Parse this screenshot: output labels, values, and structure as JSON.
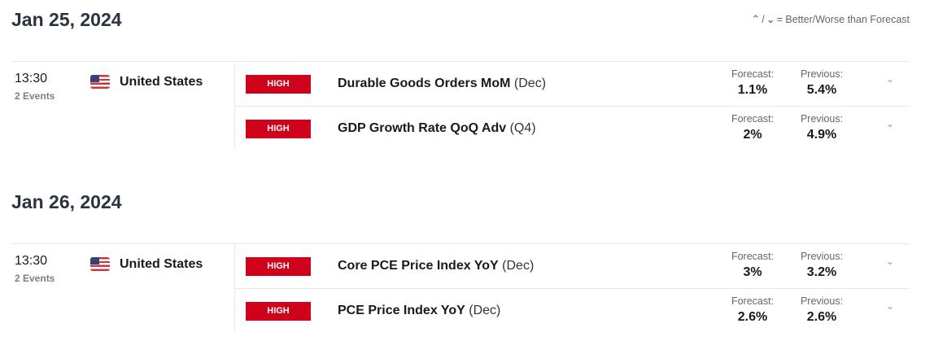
{
  "legend": {
    "better_icon": "better-arrow-icon",
    "worse_icon": "worse-arrow-icon",
    "text": "= Better/Worse than Forecast"
  },
  "labels": {
    "forecast": "Forecast:",
    "previous": "Previous:"
  },
  "days": [
    {
      "date": "Jan 25, 2024",
      "time": "13:30",
      "events_count": "2 Events",
      "country": "United States",
      "events": [
        {
          "impact": "HIGH",
          "title": "Durable Goods Orders MoM",
          "period": "(Dec)",
          "forecast": "1.1%",
          "previous": "5.4%"
        },
        {
          "impact": "HIGH",
          "title": "GDP Growth Rate QoQ Adv",
          "period": "(Q4)",
          "forecast": "2%",
          "previous": "4.9%"
        }
      ]
    },
    {
      "date": "Jan 26, 2024",
      "time": "13:30",
      "events_count": "2 Events",
      "country": "United States",
      "events": [
        {
          "impact": "HIGH",
          "title": "Core PCE Price Index YoY",
          "period": "(Dec)",
          "forecast": "3%",
          "previous": "3.2%"
        },
        {
          "impact": "HIGH",
          "title": "PCE Price Index YoY",
          "period": "(Dec)",
          "forecast": "2.6%",
          "previous": "2.6%"
        }
      ]
    }
  ],
  "colors": {
    "high_impact": "#d0021b",
    "better": "#2a6fb5",
    "worse": "#b3262b"
  }
}
